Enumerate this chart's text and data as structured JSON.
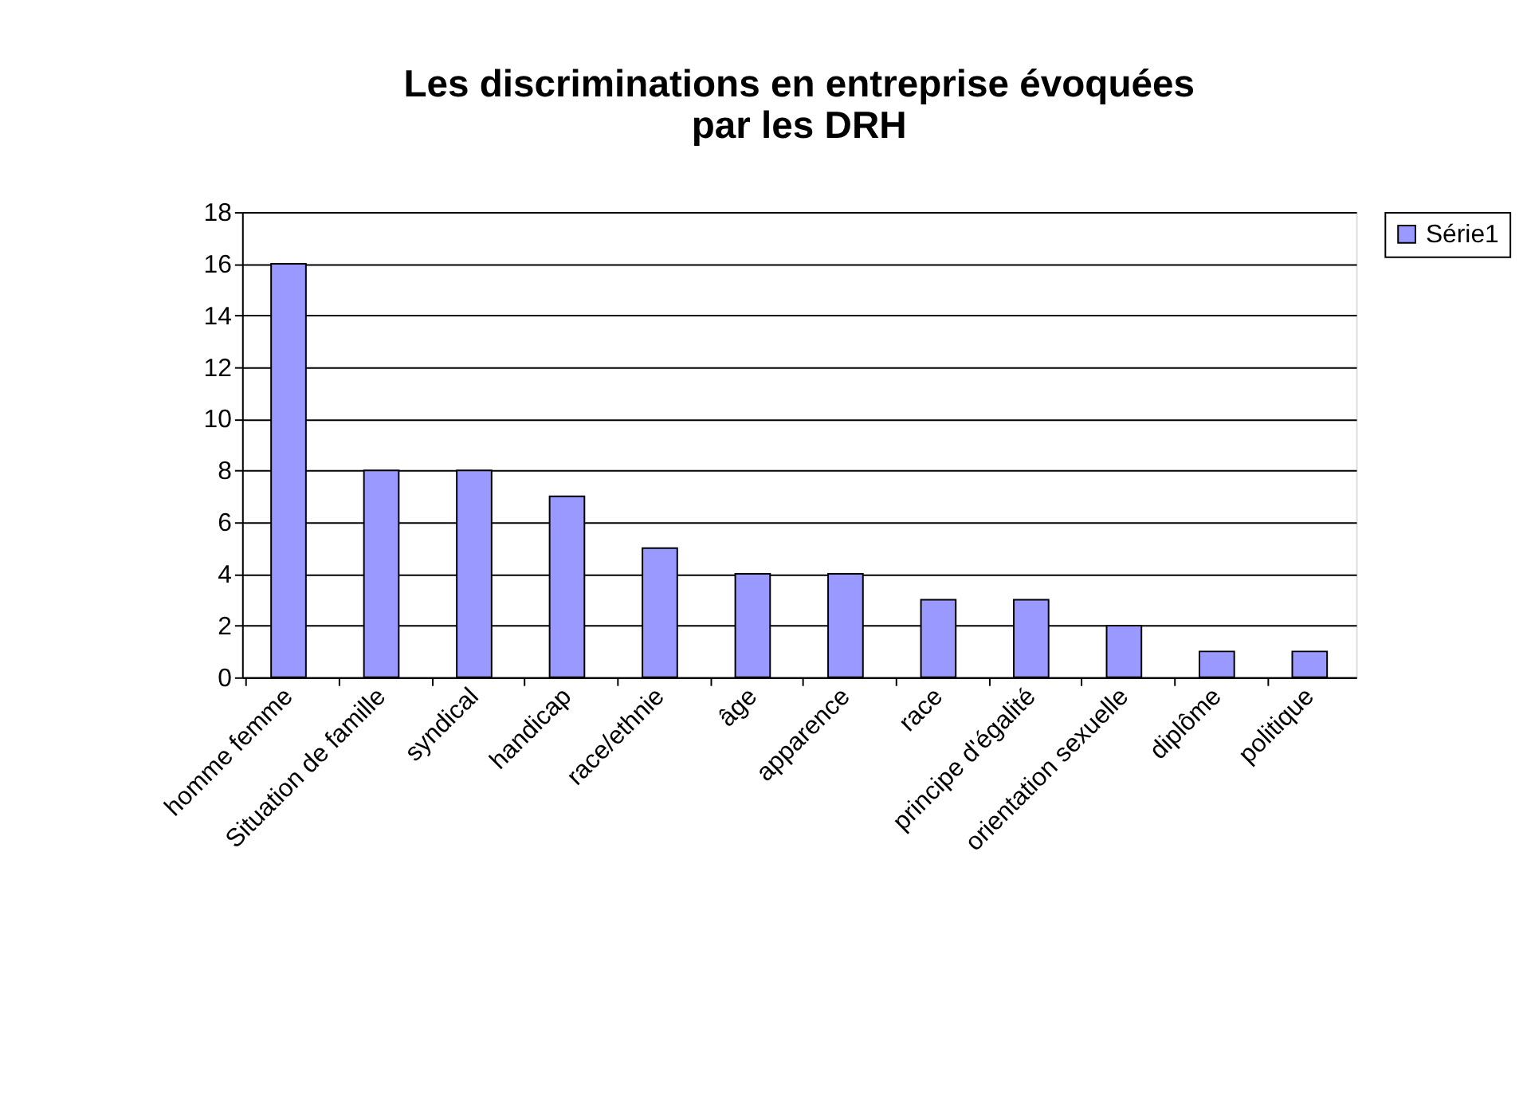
{
  "chart_data": {
    "type": "bar",
    "title": "Les discriminations en entreprise évoquées par les DRH",
    "categories": [
      "homme femme",
      "Situation de famille",
      "syndical",
      "handicap",
      "race/ethnie",
      "âge",
      "apparence",
      "race",
      "principe d'égalité",
      "orientation sexuelle",
      "diplôme",
      "politique"
    ],
    "series": [
      {
        "name": "Série1",
        "color": "#9999ff",
        "values": [
          16,
          8,
          8,
          7,
          5,
          4,
          4,
          3,
          3,
          2,
          1,
          1
        ]
      }
    ],
    "ylim": [
      0,
      18
    ],
    "yticks": [
      0,
      2,
      4,
      6,
      8,
      10,
      12,
      14,
      16,
      18
    ],
    "grid": "y",
    "legend": "right"
  }
}
